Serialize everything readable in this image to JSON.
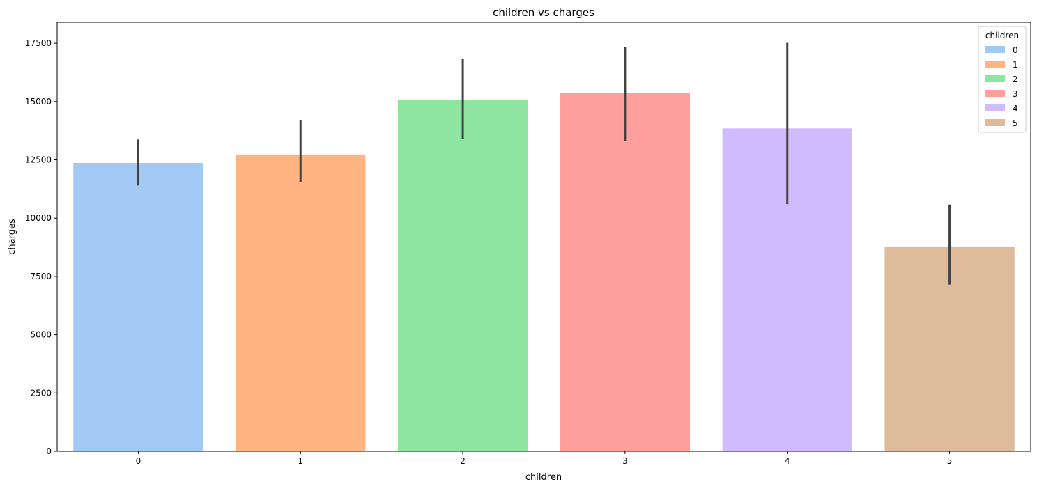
{
  "chart_data": {
    "type": "bar",
    "title": "children vs charges",
    "xlabel": "children",
    "ylabel": "charges",
    "ylim": [
      0,
      18400
    ],
    "yticks": [
      0,
      2500,
      5000,
      7500,
      10000,
      12500,
      15000,
      17500
    ],
    "categories": [
      "0",
      "1",
      "2",
      "3",
      "4",
      "5"
    ],
    "values": [
      12366,
      12731,
      15074,
      15355,
      13851,
      8786
    ],
    "ci_low": [
      11400,
      11550,
      13400,
      13300,
      10600,
      7150
    ],
    "ci_high": [
      13370,
      14220,
      16830,
      17330,
      17520,
      10580
    ],
    "colors": [
      "#a1c9f4",
      "#ffb482",
      "#8de5a1",
      "#ff9f9b",
      "#d0bbff",
      "#debb9b"
    ],
    "error_bar_color": "#424242",
    "grid": false,
    "legend": {
      "title": "children",
      "position": "top-right",
      "entries": [
        "0",
        "1",
        "2",
        "3",
        "4",
        "5"
      ]
    }
  }
}
